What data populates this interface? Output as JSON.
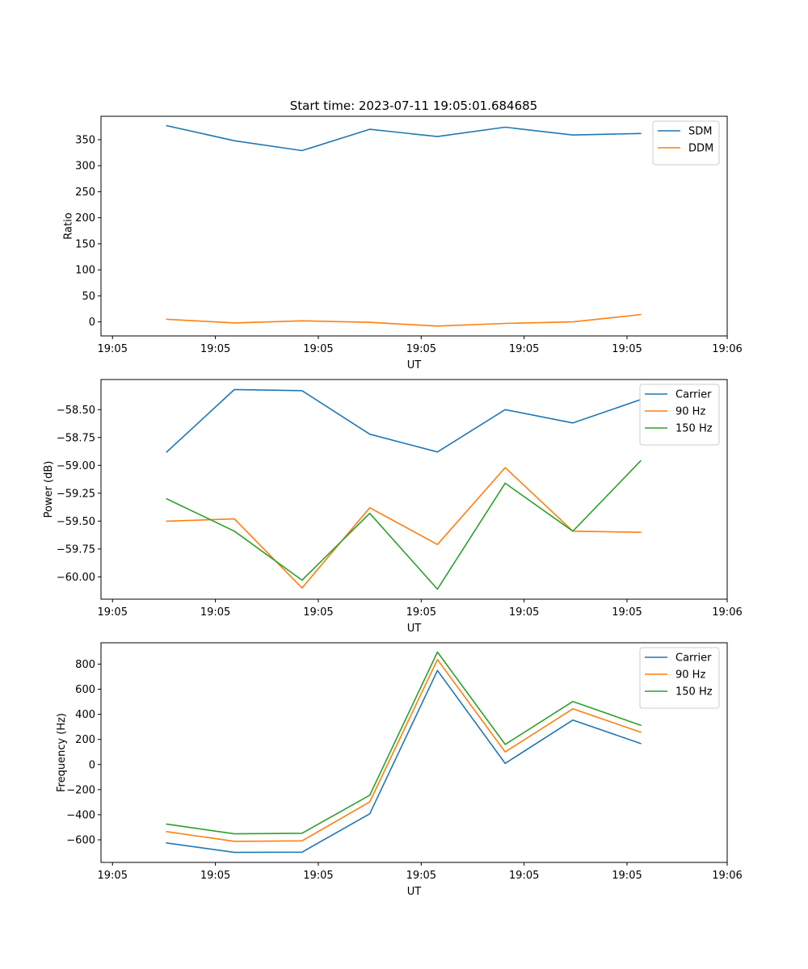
{
  "figure_title": "Start time: 2023-07-11 19:05:01.684685",
  "chart_data": [
    {
      "type": "line",
      "name": "ratio",
      "title": "Start time: 2023-07-11 19:05:01.684685",
      "xlabel": "UT",
      "ylabel": "Ratio",
      "x": [
        1,
        2,
        3,
        4,
        5,
        6,
        7,
        8
      ],
      "xlim": [
        0.03,
        9.28
      ],
      "x_ticks": [
        {
          "v": 0.2,
          "label": "19:05"
        },
        {
          "v": 1.72,
          "label": "19:05"
        },
        {
          "v": 3.24,
          "label": "19:05"
        },
        {
          "v": 4.76,
          "label": "19:05"
        },
        {
          "v": 6.28,
          "label": "19:05"
        },
        {
          "v": 7.8,
          "label": "19:05"
        },
        {
          "v": 9.28,
          "label": "19:06"
        }
      ],
      "ylim": [
        -27,
        395
      ],
      "y_ticks": [
        {
          "v": 0,
          "label": "0"
        },
        {
          "v": 50,
          "label": "50"
        },
        {
          "v": 100,
          "label": "100"
        },
        {
          "v": 150,
          "label": "150"
        },
        {
          "v": 200,
          "label": "200"
        },
        {
          "v": 250,
          "label": "250"
        },
        {
          "v": 300,
          "label": "300"
        },
        {
          "v": 350,
          "label": "350"
        }
      ],
      "legend_loc": "upper right",
      "series": [
        {
          "name": "SDM",
          "color": "#1f77b4",
          "values": [
            377,
            348,
            329,
            370,
            356,
            374,
            359,
            362
          ]
        },
        {
          "name": "DDM",
          "color": "#ff7f0e",
          "values": [
            5,
            -2,
            2,
            -1,
            -8,
            -3,
            0,
            14
          ]
        }
      ]
    },
    {
      "type": "line",
      "name": "power",
      "xlabel": "UT",
      "ylabel": "Power (dB)",
      "x": [
        1,
        2,
        3,
        4,
        5,
        6,
        7,
        8
      ],
      "xlim": [
        0.03,
        9.28
      ],
      "x_ticks": [
        {
          "v": 0.2,
          "label": "19:05"
        },
        {
          "v": 1.72,
          "label": "19:05"
        },
        {
          "v": 3.24,
          "label": "19:05"
        },
        {
          "v": 4.76,
          "label": "19:05"
        },
        {
          "v": 6.28,
          "label": "19:05"
        },
        {
          "v": 7.8,
          "label": "19:05"
        },
        {
          "v": 9.28,
          "label": "19:06"
        }
      ],
      "ylim": [
        -60.2,
        -58.23
      ],
      "y_ticks": [
        {
          "v": -60.0,
          "label": "−60.00"
        },
        {
          "v": -59.75,
          "label": "−59.75"
        },
        {
          "v": -59.5,
          "label": "−59.50"
        },
        {
          "v": -59.25,
          "label": "−59.25"
        },
        {
          "v": -59.0,
          "label": "−59.00"
        },
        {
          "v": -58.75,
          "label": "−58.75"
        },
        {
          "v": -58.5,
          "label": "−58.50"
        }
      ],
      "legend_loc": "upper right",
      "series": [
        {
          "name": "Carrier",
          "color": "#1f77b4",
          "values": [
            -58.88,
            -58.32,
            -58.33,
            -58.72,
            -58.88,
            -58.5,
            -58.62,
            -58.41
          ]
        },
        {
          "name": "90 Hz",
          "color": "#ff7f0e",
          "values": [
            -59.5,
            -59.48,
            -60.1,
            -59.38,
            -59.71,
            -59.02,
            -59.59,
            -59.6
          ]
        },
        {
          "name": "150 Hz",
          "color": "#2ca02c",
          "values": [
            -59.3,
            -59.59,
            -60.03,
            -59.43,
            -60.11,
            -59.16,
            -59.59,
            -58.96
          ]
        }
      ]
    },
    {
      "type": "line",
      "name": "frequency",
      "xlabel": "UT",
      "ylabel": "Frequency (Hz)",
      "x": [
        1,
        2,
        3,
        4,
        5,
        6,
        7,
        8
      ],
      "xlim": [
        0.03,
        9.28
      ],
      "x_ticks": [
        {
          "v": 0.2,
          "label": "19:05"
        },
        {
          "v": 1.72,
          "label": "19:05"
        },
        {
          "v": 3.24,
          "label": "19:05"
        },
        {
          "v": 4.76,
          "label": "19:05"
        },
        {
          "v": 6.28,
          "label": "19:05"
        },
        {
          "v": 7.8,
          "label": "19:05"
        },
        {
          "v": 9.28,
          "label": "19:06"
        }
      ],
      "ylim": [
        -780,
        970
      ],
      "y_ticks": [
        {
          "v": -600,
          "label": "−600"
        },
        {
          "v": -400,
          "label": "−400"
        },
        {
          "v": -200,
          "label": "−200"
        },
        {
          "v": 0,
          "label": "0"
        },
        {
          "v": 200,
          "label": "200"
        },
        {
          "v": 400,
          "label": "400"
        },
        {
          "v": 600,
          "label": "600"
        },
        {
          "v": 800,
          "label": "800"
        }
      ],
      "legend_loc": "upper right",
      "series": [
        {
          "name": "Carrier",
          "color": "#1f77b4",
          "values": [
            -625,
            -700,
            -698,
            -393,
            749,
            9,
            354,
            168
          ]
        },
        {
          "name": "90 Hz",
          "color": "#ff7f0e",
          "values": [
            -535,
            -612,
            -608,
            -298,
            836,
            100,
            444,
            258
          ]
        },
        {
          "name": "150 Hz",
          "color": "#2ca02c",
          "values": [
            -475,
            -552,
            -548,
            -245,
            896,
            160,
            502,
            313
          ]
        }
      ]
    }
  ]
}
